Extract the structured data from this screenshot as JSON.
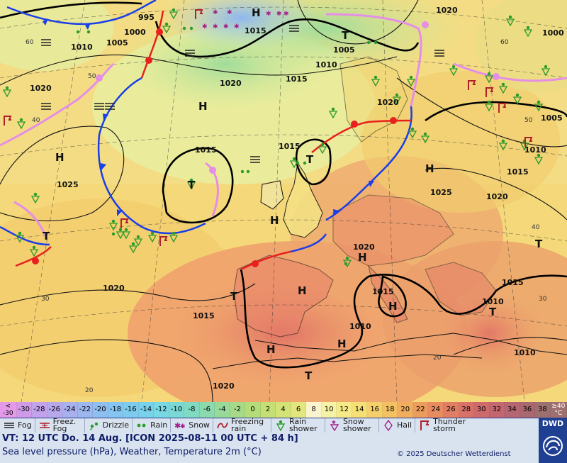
{
  "map": {
    "pressure_centers": [
      {
        "type": "H",
        "label": "H"
      },
      {
        "type": "H",
        "label": "H"
      },
      {
        "type": "H",
        "label": "H"
      },
      {
        "type": "H",
        "label": "H"
      },
      {
        "type": "H",
        "label": "H"
      },
      {
        "type": "H",
        "label": "H"
      },
      {
        "type": "H",
        "label": "H"
      },
      {
        "type": "H",
        "label": "H"
      },
      {
        "type": "H",
        "label": "H"
      },
      {
        "type": "H",
        "label": "H"
      },
      {
        "type": "T",
        "label": "T"
      },
      {
        "type": "T",
        "label": "T"
      },
      {
        "type": "T",
        "label": "T"
      },
      {
        "type": "T",
        "label": "T"
      },
      {
        "type": "T",
        "label": "T"
      },
      {
        "type": "T",
        "label": "T"
      },
      {
        "type": "T",
        "label": "T"
      },
      {
        "type": "T",
        "label": "T"
      }
    ],
    "isobar_labels": [
      "995",
      "1000",
      "1005",
      "1010",
      "1015",
      "1020",
      "1015",
      "1005",
      "1010",
      "1000",
      "1020",
      "1020",
      "1015",
      "1020",
      "1015",
      "1025",
      "1020",
      "1020",
      "1015",
      "1010",
      "1015",
      "1015",
      "1010",
      "1010",
      "1005",
      "1025",
      "1020",
      "1015",
      "1010",
      "1020"
    ],
    "temp_labels": [
      "60",
      "50",
      "40",
      "30",
      "20",
      "60",
      "50",
      "40",
      "30",
      "20"
    ]
  },
  "scale": {
    "low_end": {
      "sym": "<",
      "val": "-30"
    },
    "values": [
      "-30",
      "-28",
      "-26",
      "-24",
      "-22",
      "-20",
      "-18",
      "-16",
      "-14",
      "-12",
      "-10",
      "-8",
      "-6",
      "-4",
      "-2",
      "0",
      "2",
      "4",
      "6",
      "8",
      "10",
      "12",
      "14",
      "16",
      "18",
      "20",
      "22",
      "24",
      "26",
      "28",
      "30",
      "32",
      "34",
      "36",
      "38"
    ],
    "high_end": {
      "sym": "≥40",
      "unit": "°C"
    },
    "colors": [
      "#d88fe6",
      "#cf9be8",
      "#c2a2ea",
      "#b7a8ec",
      "#a8b0ee",
      "#9cb7ef",
      "#8fbef0",
      "#85c5f1",
      "#7dccf0",
      "#79d2ec",
      "#78d8e4",
      "#7ad9d4",
      "#80dac2",
      "#8bdaae",
      "#98da9a",
      "#a6da88",
      "#b4dc78",
      "#c4df74",
      "#d3e376",
      "#e1e77c",
      "#fbf5cf",
      "#f6f2a6",
      "#f6ea86",
      "#f6df74",
      "#f5d06a",
      "#f3c062",
      "#f1ae5e",
      "#ec9c5c",
      "#e88c60",
      "#e07e64",
      "#d87168",
      "#ce6a6c",
      "#c2676f",
      "#b66673",
      "#a9676f",
      "#9d7070"
    ]
  },
  "legend": {
    "items": [
      {
        "icon": "fog-icon",
        "label": "Fog"
      },
      {
        "icon": "freezing-fog-icon",
        "label": "Freez. Fog"
      },
      {
        "icon": "drizzle-icon",
        "label": "Drizzle"
      },
      {
        "icon": "rain-icon",
        "label": "Rain"
      },
      {
        "icon": "snow-icon",
        "label": "Snow"
      },
      {
        "icon": "freezing-rain-icon",
        "label": "Freezing rain"
      },
      {
        "icon": "rain-shower-icon",
        "label": "Rain shower"
      },
      {
        "icon": "snow-shower-icon",
        "label": "Snow shower"
      },
      {
        "icon": "hail-icon",
        "label": "Hail"
      },
      {
        "icon": "thunderstorm-icon",
        "label": "Thunder storm"
      }
    ]
  },
  "footer": {
    "valid_time": "VT: 12 UTC Do.  14 Aug. [ICON 2025-08-11  00 UTC + 84 h]",
    "description": "Sea level pressure (hPa), Weather, Temperature 2m (°C)",
    "copyright": "© 2025 Deutscher Wetterdienst",
    "logo_text": "DWD"
  }
}
